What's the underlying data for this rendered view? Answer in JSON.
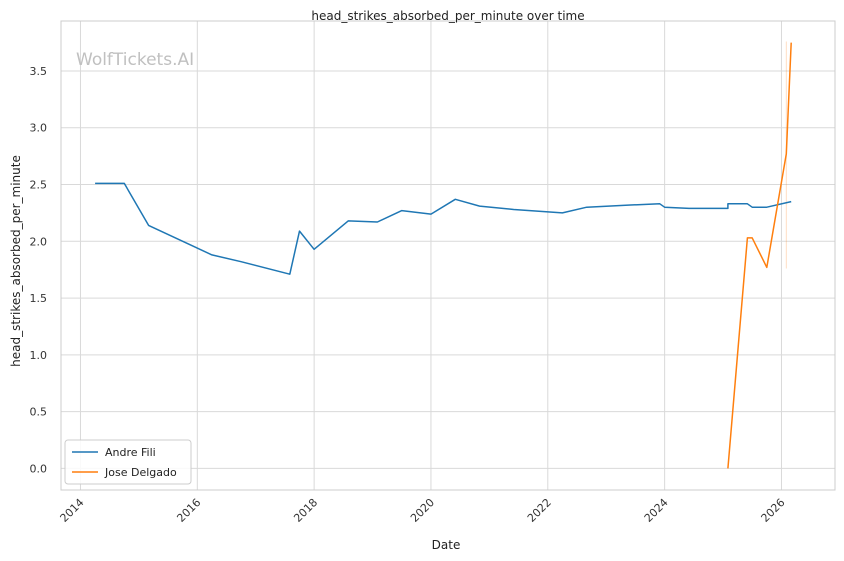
{
  "watermark": "WolfTickets.AI",
  "chart_data": {
    "type": "line",
    "title": "head_strikes_absorbed_per_minute over time",
    "xlabel": "Date",
    "ylabel": "head_strikes_absorbed_per_minute",
    "x_ticks": [
      "2014",
      "2016",
      "2018",
      "2020",
      "2022",
      "2024",
      "2026"
    ],
    "y_ticks": [
      "0.0",
      "0.5",
      "1.0",
      "1.5",
      "2.0",
      "2.5",
      "3.0",
      "3.5"
    ],
    "xlim": [
      "2013-09",
      "2026-12"
    ],
    "ylim": [
      -0.19,
      3.94
    ],
    "grid": true,
    "legend_position": "lower-left",
    "colors": {
      "Andre Fili": "#1f77b4",
      "Jose Delgado": "#ff7f0e"
    },
    "series": [
      {
        "name": "Andre Fili",
        "color": "#1f77b4",
        "points": [
          {
            "x": "2014-04",
            "y": 2.51
          },
          {
            "x": "2014-10",
            "y": 2.51
          },
          {
            "x": "2015-03",
            "y": 2.14
          },
          {
            "x": "2015-12",
            "y": 1.96
          },
          {
            "x": "2016-04",
            "y": 1.88
          },
          {
            "x": "2016-10",
            "y": 1.82
          },
          {
            "x": "2017-08",
            "y": 1.71
          },
          {
            "x": "2017-10",
            "y": 2.09
          },
          {
            "x": "2018-01",
            "y": 1.93
          },
          {
            "x": "2018-08",
            "y": 2.18
          },
          {
            "x": "2019-02",
            "y": 2.17
          },
          {
            "x": "2019-07",
            "y": 2.27
          },
          {
            "x": "2020-01",
            "y": 2.24
          },
          {
            "x": "2020-06",
            "y": 2.37
          },
          {
            "x": "2020-11",
            "y": 2.31
          },
          {
            "x": "2021-06",
            "y": 2.28
          },
          {
            "x": "2022-04",
            "y": 2.25
          },
          {
            "x": "2022-09",
            "y": 2.3
          },
          {
            "x": "2023-06",
            "y": 2.32
          },
          {
            "x": "2023-12",
            "y": 2.33
          },
          {
            "x": "2024-01",
            "y": 2.3
          },
          {
            "x": "2024-06",
            "y": 2.29
          },
          {
            "x": "2025-02",
            "y": 2.29
          },
          {
            "x": "2025-02",
            "y": 2.33
          },
          {
            "x": "2025-06",
            "y": 2.33
          },
          {
            "x": "2025-07",
            "y": 2.3
          },
          {
            "x": "2025-10",
            "y": 2.3
          },
          {
            "x": "2026-03",
            "y": 2.35
          }
        ]
      },
      {
        "name": "Jose Delgado",
        "color": "#ff7f0e",
        "points": [
          {
            "x": "2025-02",
            "y": 0.0
          },
          {
            "x": "2025-06",
            "y": 2.03
          },
          {
            "x": "2025-07",
            "y": 2.03
          },
          {
            "x": "2025-10",
            "y": 1.77
          },
          {
            "x": "2026-02",
            "y": 2.77
          },
          {
            "x": "2026-03",
            "y": 3.75
          }
        ],
        "error_band": {
          "x": "2026-02",
          "low": 1.76,
          "high": 3.76
        }
      }
    ]
  }
}
